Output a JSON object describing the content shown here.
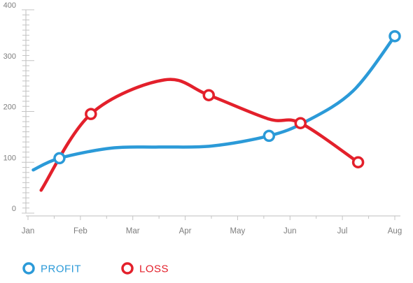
{
  "chart_data": {
    "type": "line",
    "categories": [
      "Jan",
      "Feb",
      "Mar",
      "Apr",
      "May",
      "Jun",
      "Jul",
      "Aug"
    ],
    "ylim": [
      0,
      400
    ],
    "yticks": [
      0,
      100,
      200,
      300,
      400
    ],
    "grid": false,
    "legend_position": "bottom-left",
    "series": [
      {
        "name": "PROFIT",
        "color": "#2b9ad8",
        "points": [
          [
            0.1,
            85
          ],
          [
            0.6,
            108
          ],
          [
            1.6,
            128
          ],
          [
            2.5,
            130
          ],
          [
            3.5,
            132
          ],
          [
            4.6,
            152
          ],
          [
            5.3,
            180
          ],
          [
            6.2,
            240
          ],
          [
            7.0,
            348
          ]
        ],
        "markers": [
          [
            0.6,
            108
          ],
          [
            4.6,
            152
          ],
          [
            7.0,
            348
          ]
        ]
      },
      {
        "name": "LOSS",
        "color": "#e3202b",
        "points": [
          [
            0.25,
            45
          ],
          [
            1.2,
            195
          ],
          [
            2.6,
            262
          ],
          [
            3.45,
            232
          ],
          [
            4.6,
            185
          ],
          [
            5.2,
            177
          ],
          [
            6.3,
            100
          ]
        ],
        "markers": [
          [
            1.2,
            195
          ],
          [
            3.45,
            232
          ],
          [
            5.2,
            177
          ],
          [
            6.3,
            100
          ]
        ]
      }
    ]
  }
}
